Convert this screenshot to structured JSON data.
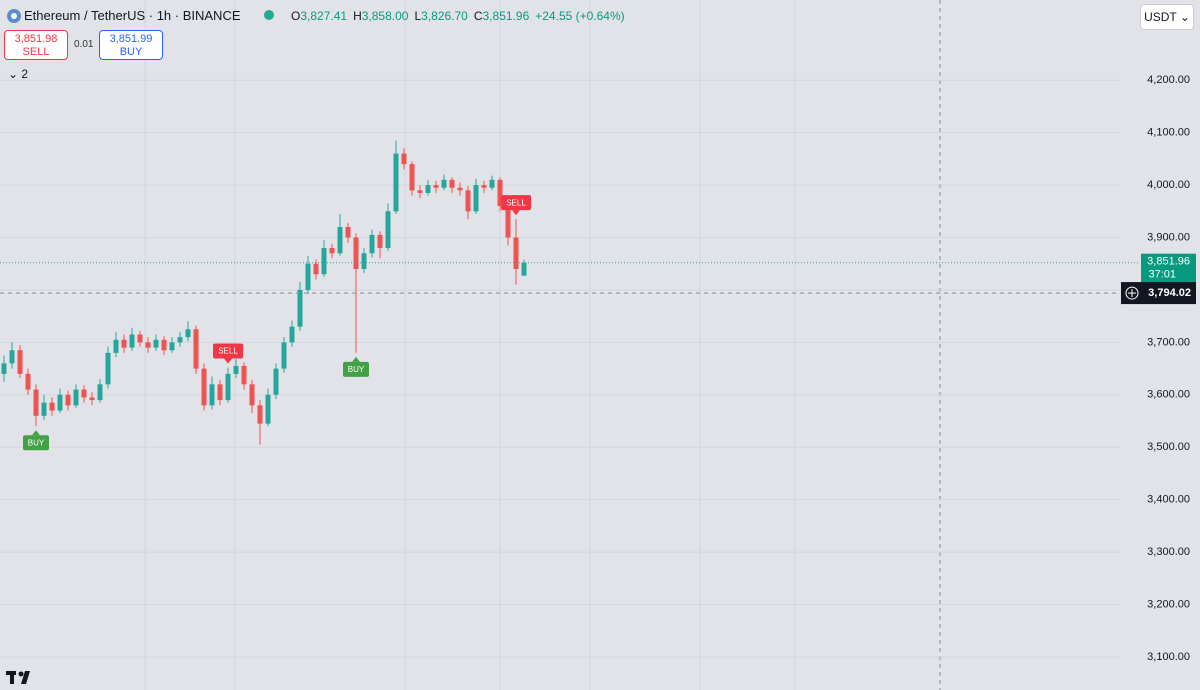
{
  "toolbar": {
    "symbol": "Ethereum / TetherUS · 1h · BINANCE",
    "ohlc_legend": [
      {
        "key": "O",
        "value": "3,827.41"
      },
      {
        "key": "H",
        "value": "3,858.00"
      },
      {
        "key": "L",
        "value": "3,826.70"
      },
      {
        "key": "C",
        "value": "3,851.96"
      }
    ],
    "change": "+24.55 (+0.64%)",
    "sell_price": "3,851.98",
    "sell_label": "SELL",
    "spread": "0.01",
    "buy_price": "3,851.99",
    "buy_label": "BUY",
    "indicators": "2",
    "currency": "USDT"
  },
  "chart_data": {
    "type": "candlestick",
    "up_color": "#26a69a",
    "down_color": "#ef5350",
    "grid": true,
    "ylim": [
      3037,
      4353
    ],
    "yticks": [
      {
        "value": 3100,
        "label": "3,100.00"
      },
      {
        "value": 3200,
        "label": "3,200.00"
      },
      {
        "value": 3300,
        "label": "3,300.00"
      },
      {
        "value": 3400,
        "label": "3,400.00"
      },
      {
        "value": 3500,
        "label": "3,500.00"
      },
      {
        "value": 3600,
        "label": "3,600.00"
      },
      {
        "value": 3700,
        "label": "3,700.00"
      },
      {
        "value": 3800,
        "label": "3,800.00"
      },
      {
        "value": 3900,
        "label": "3,900.00"
      },
      {
        "value": 4000,
        "label": "4,000.00"
      },
      {
        "value": 4100,
        "label": "4,100.00"
      },
      {
        "value": 4200,
        "label": "4,200.00"
      }
    ],
    "open": [
      3640,
      3660,
      3685,
      3640,
      3610,
      3560,
      3585,
      3570,
      3600,
      3580,
      3610,
      3595,
      3590,
      3620,
      3680,
      3705,
      3690,
      3715,
      3700,
      3690,
      3705,
      3685,
      3700,
      3710,
      3725,
      3650,
      3580,
      3620,
      3590,
      3640,
      3655,
      3620,
      3580,
      3545,
      3600,
      3650,
      3700,
      3730,
      3800,
      3850,
      3830,
      3880,
      3870,
      3920,
      3900,
      3840,
      3870,
      3905,
      3880,
      3950,
      4060,
      4040,
      3990,
      3985,
      4000,
      3995,
      4010,
      3995,
      3990,
      3950,
      4000,
      3995,
      4010,
      3960,
      3900,
      3827.41
    ],
    "high": [
      3675,
      3700,
      3695,
      3650,
      3620,
      3600,
      3595,
      3612,
      3608,
      3620,
      3618,
      3605,
      3630,
      3692,
      3720,
      3715,
      3728,
      3722,
      3710,
      3715,
      3712,
      3710,
      3720,
      3740,
      3732,
      3660,
      3635,
      3628,
      3652,
      3668,
      3662,
      3628,
      3590,
      3612,
      3660,
      3710,
      3742,
      3815,
      3865,
      3858,
      3895,
      3888,
      3945,
      3928,
      3908,
      3880,
      3915,
      3912,
      3965,
      4085,
      4070,
      4045,
      4000,
      4010,
      4008,
      4020,
      4015,
      4005,
      3998,
      4012,
      4008,
      4018,
      4015,
      3968,
      3935,
      3858
    ],
    "low": [
      3625,
      3650,
      3632,
      3600,
      3540,
      3552,
      3560,
      3565,
      3570,
      3575,
      3585,
      3580,
      3585,
      3612,
      3672,
      3680,
      3684,
      3692,
      3680,
      3684,
      3676,
      3680,
      3692,
      3702,
      3640,
      3570,
      3572,
      3580,
      3585,
      3632,
      3610,
      3565,
      3505,
      3540,
      3592,
      3642,
      3692,
      3722,
      3792,
      3820,
      3825,
      3860,
      3865,
      3890,
      3680,
      3832,
      3862,
      3860,
      3875,
      3945,
      4030,
      3980,
      3975,
      3980,
      3985,
      3990,
      3985,
      3980,
      3935,
      3945,
      3985,
      3990,
      3950,
      3885,
      3810,
      3826.7
    ],
    "close": [
      3660,
      3685,
      3640,
      3610,
      3560,
      3585,
      3570,
      3600,
      3580,
      3610,
      3595,
      3590,
      3620,
      3680,
      3705,
      3690,
      3715,
      3700,
      3690,
      3705,
      3685,
      3700,
      3710,
      3725,
      3650,
      3580,
      3620,
      3590,
      3640,
      3655,
      3620,
      3580,
      3545,
      3600,
      3650,
      3700,
      3730,
      3800,
      3850,
      3830,
      3880,
      3870,
      3920,
      3900,
      3840,
      3870,
      3905,
      3880,
      3950,
      4060,
      4040,
      3990,
      3985,
      4000,
      3995,
      4010,
      3995,
      3990,
      3950,
      4000,
      3995,
      4010,
      3960,
      3900,
      3840,
      3851.96
    ],
    "signals": [
      {
        "text": "BUY",
        "bar": 4
      },
      {
        "text": "SELL",
        "bar": 28
      },
      {
        "text": "BUY",
        "bar": 44
      },
      {
        "text": "SELL",
        "bar": 64
      }
    ],
    "last_price": {
      "value": 3851.96,
      "label": "3,851.96",
      "countdown": "37:01"
    },
    "crosshair": {
      "value": 3794.02,
      "label": "3,794.02"
    }
  }
}
